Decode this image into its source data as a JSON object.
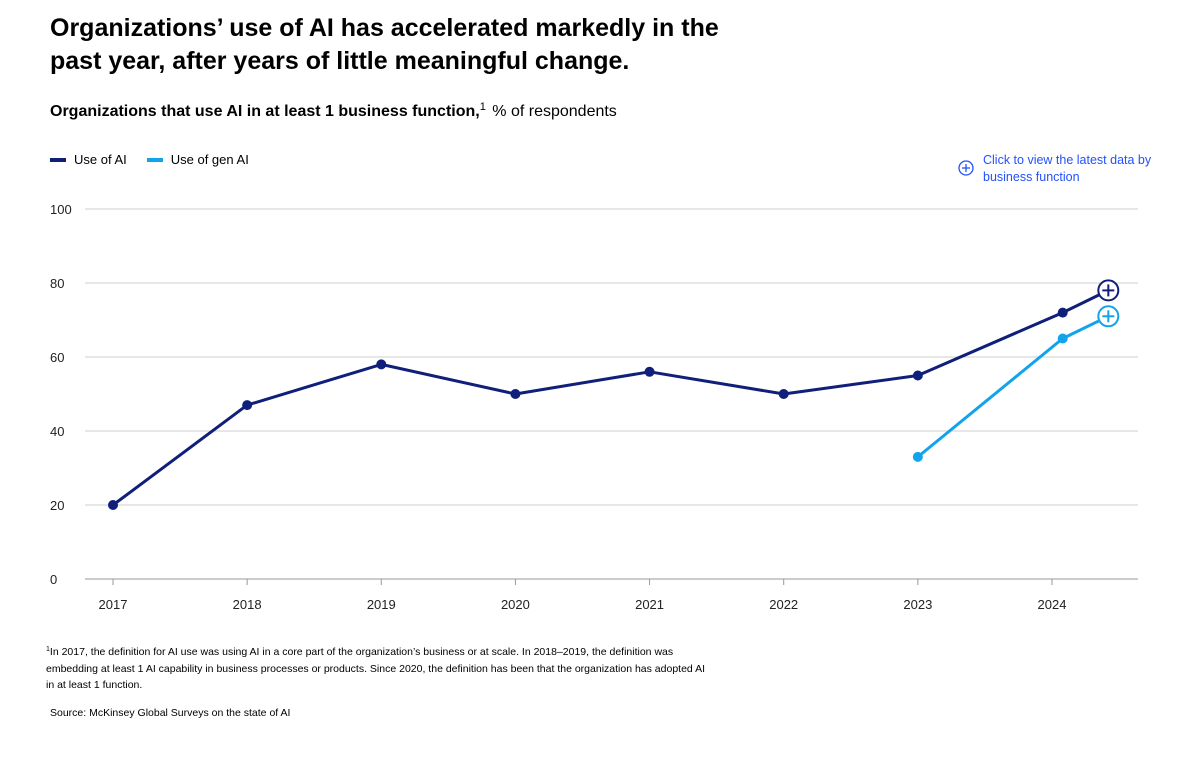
{
  "title": "Organizations’ use of AI has accelerated markedly in the past year, after years of little meaningful change.",
  "subtitle": {
    "bold": "Organizations that use AI in at least 1 business function,",
    "sup": "1",
    "rest": "% of respondents"
  },
  "legend": [
    {
      "label": "Use of AI",
      "color": "#0f1f7a"
    },
    {
      "label": "Use of gen AI",
      "color": "#12a3eb"
    }
  ],
  "cta": {
    "label": "Click to view the latest data by business function"
  },
  "chart_data": {
    "type": "line",
    "title": "Organizations that use AI in at least 1 business function, % of respondents",
    "x_ticks": [
      "2017",
      "2018",
      "2019",
      "2020",
      "2021",
      "2022",
      "2023",
      "2024"
    ],
    "y_ticks": [
      0,
      20,
      40,
      60,
      80,
      100
    ],
    "ylim": [
      0,
      100
    ],
    "grid": true,
    "series": [
      {
        "name": "Use of AI",
        "color": "#0f1f7a",
        "x": [
          2017.0,
          2018.0,
          2019.0,
          2020.0,
          2021.0,
          2022.0,
          2023.0,
          2024.08
        ],
        "values": [
          20,
          47,
          58,
          50,
          56,
          50,
          55,
          72
        ],
        "end": {
          "x": 2024.42,
          "value": 78
        }
      },
      {
        "name": "Use of gen AI",
        "color": "#12a3eb",
        "x": [
          2023.0,
          2024.08
        ],
        "values": [
          33,
          65
        ],
        "end": {
          "x": 2024.42,
          "value": 71
        }
      }
    ]
  },
  "footnote": {
    "sup": "1",
    "text": "In 2017, the definition for AI use was using AI in a core part of the organization’s business or at scale. In 2018–2019, the definition was embedding at least 1 AI capability in business processes or products. Since 2020, the definition has been that the organization has adopted AI in at least 1 function."
  },
  "source": "Source: McKinsey Global Surveys on the state of AI"
}
